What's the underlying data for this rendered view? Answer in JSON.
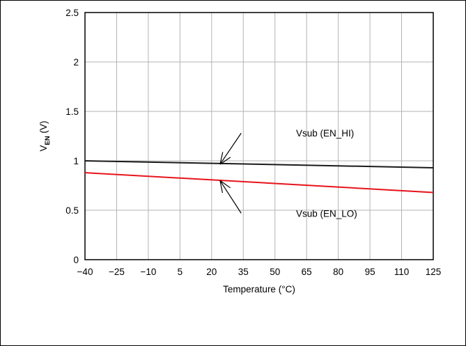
{
  "chart_data": {
    "type": "line",
    "xlabel": "Temperature (°C)",
    "ylabel": {
      "main": "V",
      "sub": "EN",
      "unit": " (V)"
    },
    "xlim": [
      -40,
      125
    ],
    "ylim": [
      0,
      2.5
    ],
    "x_ticks": [
      -40,
      -25,
      -10,
      5,
      20,
      35,
      50,
      65,
      80,
      95,
      110,
      125
    ],
    "x_tick_labels": [
      "−40",
      "−25",
      "−10",
      "5",
      "20",
      "35",
      "50",
      "65",
      "80",
      "95",
      "110",
      "125"
    ],
    "y_ticks": [
      0,
      0.5,
      1,
      1.5,
      2,
      2.5
    ],
    "y_tick_labels": [
      "0",
      "0.5",
      "1",
      "1.5",
      "2",
      "2.5"
    ],
    "grid": true,
    "series": [
      {
        "name": "Vsub (EN_HI)",
        "color": "#1a1a1a",
        "x": [
          -40,
          125
        ],
        "y": [
          1.0,
          0.93
        ]
      },
      {
        "name": "Vsub (EN_LO)",
        "color": "#e8121b",
        "x": [
          -40,
          125
        ],
        "y": [
          0.88,
          0.68
        ]
      }
    ],
    "annotations": [
      {
        "text": "Vsub (EN_HI)",
        "point_to": [
          24,
          0.965
        ],
        "label_at": [
          60,
          1.28
        ],
        "arrow_tail": [
          34,
          1.28
        ]
      },
      {
        "text": "Vsub (EN_LO)",
        "point_to": [
          24,
          0.8
        ],
        "label_at": [
          60,
          0.47
        ],
        "arrow_tail": [
          34,
          0.47
        ]
      }
    ]
  }
}
